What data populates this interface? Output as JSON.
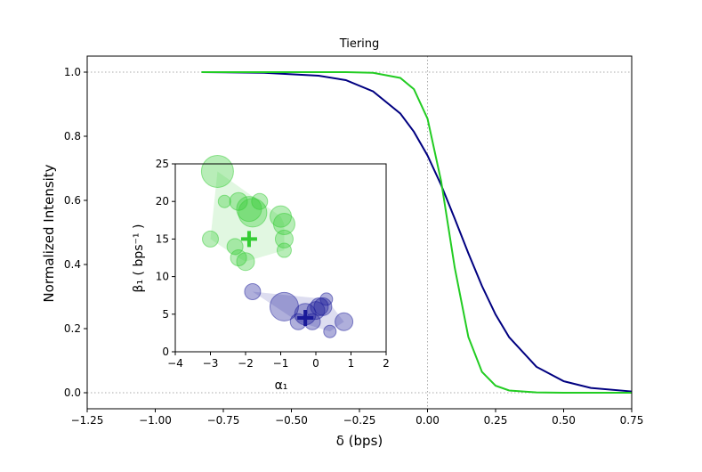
{
  "chart_data": [
    {
      "type": "line",
      "title": "Tiering",
      "xlabel": "δ (bps)",
      "ylabel": "Normalized Intensity",
      "x": [
        -0.83,
        -0.6,
        -0.4,
        -0.3,
        -0.2,
        -0.1,
        -0.05,
        0,
        0.05,
        0.1,
        0.15,
        0.2,
        0.25,
        0.3,
        0.4,
        0.5,
        0.6,
        0.75
      ],
      "series": [
        {
          "color": "#000080",
          "values": [
            1.0,
            0.998,
            0.989,
            0.975,
            0.94,
            0.871,
            0.814,
            0.74,
            0.648,
            0.543,
            0.435,
            0.333,
            0.244,
            0.173,
            0.081,
            0.036,
            0.015,
            0.004
          ]
        },
        {
          "color": "#22cc22",
          "values": [
            1.0,
            1.0,
            1.0,
            1.0,
            0.998,
            0.982,
            0.947,
            0.855,
            0.66,
            0.39,
            0.174,
            0.065,
            0.022,
            0.007,
            0.001,
            0,
            0,
            0
          ]
        }
      ],
      "hlines": [
        0,
        1
      ],
      "vlines": [
        0
      ],
      "xlim": [
        -1.25,
        0.75
      ],
      "ylim": [
        -0.05,
        1.05
      ],
      "xticks": [
        {
          "value": -1.25,
          "label": "−1.25"
        },
        {
          "value": -1.0,
          "label": "−1.00"
        },
        {
          "value": -0.75,
          "label": "−0.75"
        },
        {
          "value": -0.5,
          "label": "−0.50"
        },
        {
          "value": -0.25,
          "label": "−0.25"
        },
        {
          "value": 0,
          "label": "0.00"
        },
        {
          "value": 0.25,
          "label": "0.25"
        },
        {
          "value": 0.5,
          "label": "0.50"
        },
        {
          "value": 0.75,
          "label": "0.75"
        }
      ],
      "yticks": [
        {
          "value": 0,
          "label": "0.0"
        },
        {
          "value": 0.2,
          "label": "0.2"
        },
        {
          "value": 0.4,
          "label": "0.4"
        },
        {
          "value": 0.6,
          "label": "0.6"
        },
        {
          "value": 0.8,
          "label": "0.8"
        },
        {
          "value": 1.0,
          "label": "1.0"
        }
      ]
    },
    {
      "type": "scatter",
      "xlabel": "α₁",
      "ylabel": "β₁ ( bps⁻¹ )",
      "series": [
        {
          "color": "#33cc33",
          "x": [
            -2.8,
            -2.6,
            -2.2,
            -1.9,
            -1.6,
            -1.8,
            -1.0,
            -0.9,
            -0.9,
            -3.0,
            -2.3,
            -2.2,
            -2.0,
            -0.9
          ],
          "y": [
            24,
            20,
            20,
            19,
            20,
            18.5,
            18,
            17,
            15,
            15,
            14,
            12.5,
            12,
            13.5
          ],
          "sizes": [
            18,
            7,
            10,
            14,
            9,
            16,
            12,
            12,
            10,
            9,
            9,
            9,
            10,
            8
          ],
          "centroid": [
            -1.9,
            15
          ]
        },
        {
          "color": "#1a1a99",
          "x": [
            -1.8,
            -0.9,
            -0.3,
            -0.5,
            -0.1,
            0,
            0.1,
            0.3,
            0.2,
            0.8,
            0.4
          ],
          "y": [
            8,
            6,
            5,
            4,
            4,
            5.5,
            6,
            7,
            6,
            4,
            2.7
          ],
          "sizes": [
            9,
            16,
            12,
            9,
            9,
            10,
            10,
            7,
            10,
            10,
            7
          ],
          "centroid": [
            -0.3,
            4.5
          ]
        }
      ],
      "xlim": [
        -4,
        2
      ],
      "ylim": [
        0,
        25
      ],
      "xticks": [
        {
          "value": -4,
          "label": "−4"
        },
        {
          "value": -3,
          "label": "−3"
        },
        {
          "value": -2,
          "label": "−2"
        },
        {
          "value": -1,
          "label": "−1"
        },
        0,
        1,
        2
      ],
      "yticks": [
        0,
        5,
        10,
        15,
        20,
        25
      ]
    }
  ]
}
